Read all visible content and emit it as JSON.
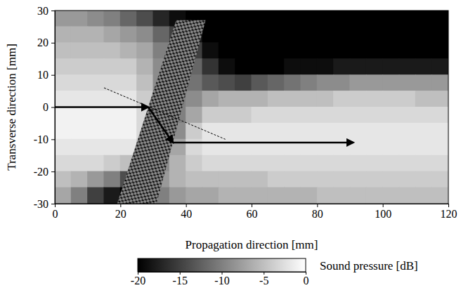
{
  "chart_data": {
    "type": "heatmap",
    "xlabel": "Propagation direction [mm]",
    "ylabel": "Transverse direction [mm]",
    "xlim": [
      0,
      120
    ],
    "ylim": [
      -30,
      30
    ],
    "xticks": [
      0,
      20,
      40,
      60,
      80,
      100,
      120
    ],
    "yticks": [
      -30,
      -20,
      -10,
      0,
      10,
      20,
      30
    ],
    "x": [
      2.5,
      7.5,
      12.5,
      17.5,
      22.5,
      27.5,
      32.5,
      37.5,
      42.5,
      47.5,
      52.5,
      57.5,
      62.5,
      67.5,
      72.5,
      77.5,
      82.5,
      87.5,
      92.5,
      97.5,
      102.5,
      107.5,
      112.5,
      117.5
    ],
    "y": [
      27.5,
      22.5,
      17.5,
      12.5,
      7.5,
      2.5,
      -2.5,
      -7.5,
      -12.5,
      -17.5,
      -22.5,
      -27.5
    ],
    "cells": [
      [
        -8,
        -8,
        -9,
        -10,
        -12,
        -14,
        -17,
        -19,
        -20,
        -20,
        -20,
        -20,
        -20,
        -20,
        -20,
        -20,
        -20,
        -20,
        -20,
        -20,
        -20,
        -20,
        -20,
        -20
      ],
      [
        -6,
        -6,
        -6,
        -7,
        -8,
        -9,
        -12,
        -15,
        -18,
        -20,
        -20,
        -20,
        -20,
        -20,
        -20,
        -20,
        -20,
        -20,
        -20,
        -20,
        -20,
        -20,
        -20,
        -20
      ],
      [
        -5,
        -5,
        -5,
        -5,
        -6,
        -7,
        -10,
        -12,
        -15,
        -19,
        -20,
        -20,
        -20,
        -20,
        -20,
        -20,
        -20,
        -20,
        -20,
        -20,
        -20,
        -20,
        -20,
        -20
      ],
      [
        -4,
        -4,
        -4,
        -4,
        -4,
        -6,
        -9,
        -10,
        -12,
        -16,
        -19,
        -20,
        -20,
        -20,
        -19,
        -19,
        -19,
        -18,
        -18,
        -18,
        -18,
        -18,
        -18,
        -18
      ],
      [
        -3,
        -3,
        -3,
        -3,
        -3,
        -5,
        -9,
        -10,
        -11,
        -13,
        -14,
        -15,
        -13,
        -12,
        -11,
        -10,
        -9,
        -9,
        -8,
        -8,
        -8,
        -8,
        -8,
        -8
      ],
      [
        -2,
        -2,
        -2,
        -2,
        -2,
        -4,
        -9,
        -10,
        -9,
        -7,
        -6,
        -6,
        -6,
        -5,
        -5,
        -5,
        -5,
        -4,
        -4,
        -4,
        -4,
        -4,
        -5,
        -5
      ],
      [
        -1,
        -1,
        -1,
        -1,
        -1,
        -3,
        -9,
        -10,
        -7,
        -4,
        -4,
        -4,
        -3,
        -3,
        -3,
        -3,
        -3,
        -3,
        -3,
        -3,
        -3,
        -3,
        -3,
        -3
      ],
      [
        -1,
        -1,
        -1,
        -1,
        -1,
        -3,
        -8,
        -9,
        -4,
        -2,
        -2,
        -2,
        -2,
        -2,
        -2,
        -2,
        -2,
        -2,
        -2,
        -2,
        -2,
        -2,
        -2,
        -2
      ],
      [
        -2,
        -2,
        -2,
        -2,
        -2,
        -4,
        -9,
        -7,
        -3,
        -2,
        -2,
        -2,
        -2,
        -2,
        -2,
        -2,
        -2,
        -2,
        -2,
        -2,
        -2,
        -2,
        -2,
        -2
      ],
      [
        -3,
        -3,
        -3,
        -4,
        -5,
        -8,
        -9,
        -6,
        -4,
        -3,
        -3,
        -3,
        -3,
        -3,
        -3,
        -3,
        -3,
        -3,
        -3,
        -3,
        -3,
        -3,
        -3,
        -3
      ],
      [
        -5,
        -6,
        -8,
        -10,
        -14,
        -10,
        -8,
        -6,
        -5,
        -5,
        -5,
        -5,
        -5,
        -4,
        -4,
        -4,
        -4,
        -4,
        -4,
        -4,
        -4,
        -4,
        -4,
        -4
      ],
      [
        -7,
        -10,
        -15,
        -18,
        -20,
        -12,
        -10,
        -8,
        -7,
        -7,
        -6,
        -6,
        -6,
        -6,
        -6,
        -6,
        -5,
        -5,
        -5,
        -5,
        -5,
        -5,
        -5,
        -5
      ]
    ],
    "colorbar": {
      "label": "Sound pressure [dB]",
      "range": [
        -20,
        0
      ],
      "ticks": [
        -20,
        -15,
        -10,
        -5,
        0
      ]
    }
  }
}
